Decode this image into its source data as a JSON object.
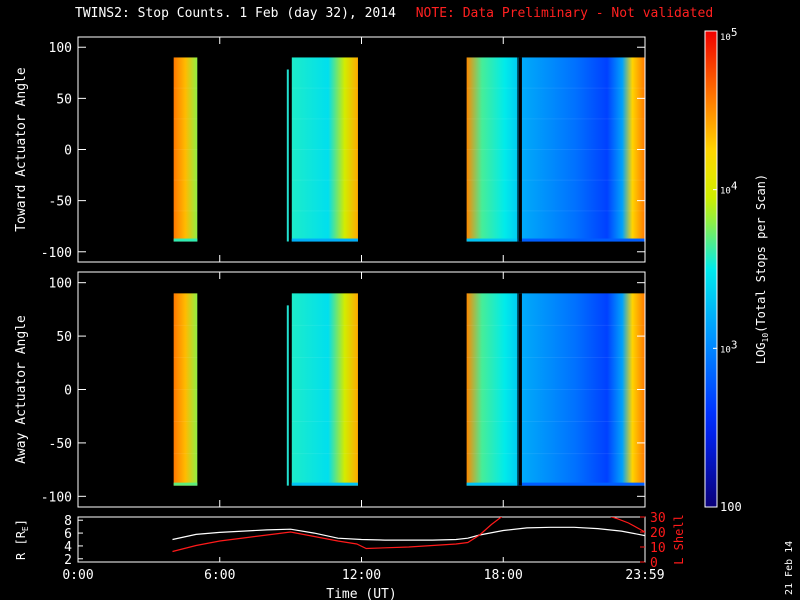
{
  "title": "TWINS2: Stop Counts.  1 Feb (day  32), 2014",
  "note": "NOTE: Data Preliminary - Not validated",
  "side_label": "21 Feb 14",
  "colors": {
    "axis": "#ffffff",
    "orbit_r": "#ffffff",
    "orbit_l": "#ff1a1a",
    "note": "#ff2020"
  },
  "chart_data": [
    {
      "type": "heatmap",
      "ylabel": "Toward Actuator Angle",
      "ylim": [
        -110,
        110
      ],
      "yticks": [
        "100",
        "50",
        "0",
        "-50",
        "-100"
      ],
      "ytick_values": [
        100,
        50,
        0,
        -50,
        -100
      ],
      "xlim_hours": [
        0,
        24
      ],
      "data_angle_range": [
        -90,
        90
      ],
      "blocks": [
        {
          "t_start": 4.05,
          "t_end": 5.05,
          "level": 3.6
        },
        {
          "t_start": 9.05,
          "t_end": 11.85,
          "level": 3.2
        },
        {
          "t_start": 16.45,
          "t_end": 18.6,
          "level": 3.3
        },
        {
          "t_start": 18.65,
          "t_end": 24.0,
          "level": 2.8
        }
      ],
      "grid": false
    },
    {
      "type": "heatmap",
      "ylabel": "Away Actuator Angle",
      "ylim": [
        -110,
        110
      ],
      "yticks": [
        "100",
        "50",
        "0",
        "-50",
        "-100"
      ],
      "ytick_values": [
        100,
        50,
        0,
        -50,
        -100
      ],
      "xlim_hours": [
        0,
        24
      ],
      "data_angle_range": [
        -90,
        90
      ],
      "blocks": [
        {
          "t_start": 4.05,
          "t_end": 5.05,
          "level": 3.7
        },
        {
          "t_start": 9.05,
          "t_end": 11.85,
          "level": 3.3
        },
        {
          "t_start": 16.45,
          "t_end": 18.6,
          "level": 3.3
        },
        {
          "t_start": 18.65,
          "t_end": 24.0,
          "level": 2.8
        }
      ],
      "grid": false
    },
    {
      "type": "line",
      "ylabel_left": "R [R",
      "ylabel_left_sub": "E",
      "ylabel_left_tail": "]",
      "yticks_left": [
        "2",
        "4",
        "6",
        "8"
      ],
      "ytick_values_left": [
        2,
        4,
        6,
        8
      ],
      "ylim_left": [
        1.5,
        8.5
      ],
      "ylabel_right": "L Shell",
      "yticks_right": [
        "0",
        "10",
        "20",
        "30"
      ],
      "ytick_values_right": [
        0,
        10,
        20,
        30
      ],
      "ylim_right": [
        0,
        30
      ],
      "xlabel": "Time (UT)",
      "xticks": [
        "0:00",
        "6:00",
        "12:00",
        "18:00",
        "23:59"
      ],
      "xtick_hours": [
        0,
        6,
        12,
        18,
        24
      ],
      "series": [
        {
          "axis": "left",
          "color": "#ffffff",
          "x": [
            4.0,
            5.0,
            6.0,
            7.0,
            8.0,
            9.0,
            10.0,
            11.0,
            12.0,
            13.0,
            14.0,
            15.0,
            16.0,
            16.5,
            17.0,
            18.0,
            19.0,
            20.0,
            21.0,
            22.0,
            23.0,
            24.0
          ],
          "y": [
            5.0,
            5.8,
            6.1,
            6.3,
            6.5,
            6.6,
            6.0,
            5.2,
            5.0,
            4.9,
            4.9,
            4.9,
            5.0,
            5.2,
            5.7,
            6.4,
            6.8,
            6.9,
            6.9,
            6.7,
            6.3,
            5.6
          ]
        },
        {
          "axis": "right",
          "color": "#ff1a1a",
          "x": [
            4.0,
            5.0,
            6.0,
            7.0,
            8.0,
            9.0,
            10.0,
            11.0,
            11.8,
            12.2,
            13.0,
            14.0,
            15.0,
            16.0,
            16.5,
            17.0,
            17.5,
            18.0,
            22.4,
            22.8,
            23.3,
            24.0
          ],
          "y": [
            7.0,
            11.0,
            14.0,
            16.0,
            18.0,
            20.0,
            17.0,
            14.0,
            12.0,
            9.0,
            9.5,
            10.0,
            11.0,
            12.0,
            13.0,
            18.0,
            25.0,
            31.0,
            31.0,
            29.0,
            26.0,
            20.0
          ]
        }
      ]
    }
  ],
  "colorbar": {
    "label": "LOG",
    "label_sub": "10",
    "label_tail": "(Total Stops per Scan)",
    "tick_labels": [
      {
        "base": "10",
        "exp": "5"
      },
      {
        "base": "10",
        "exp": "4"
      },
      {
        "base": "10",
        "exp": "3"
      },
      {
        "base": "100",
        "exp": ""
      }
    ],
    "tick_values": [
      5,
      4,
      3,
      2
    ],
    "range": [
      2,
      5
    ]
  }
}
